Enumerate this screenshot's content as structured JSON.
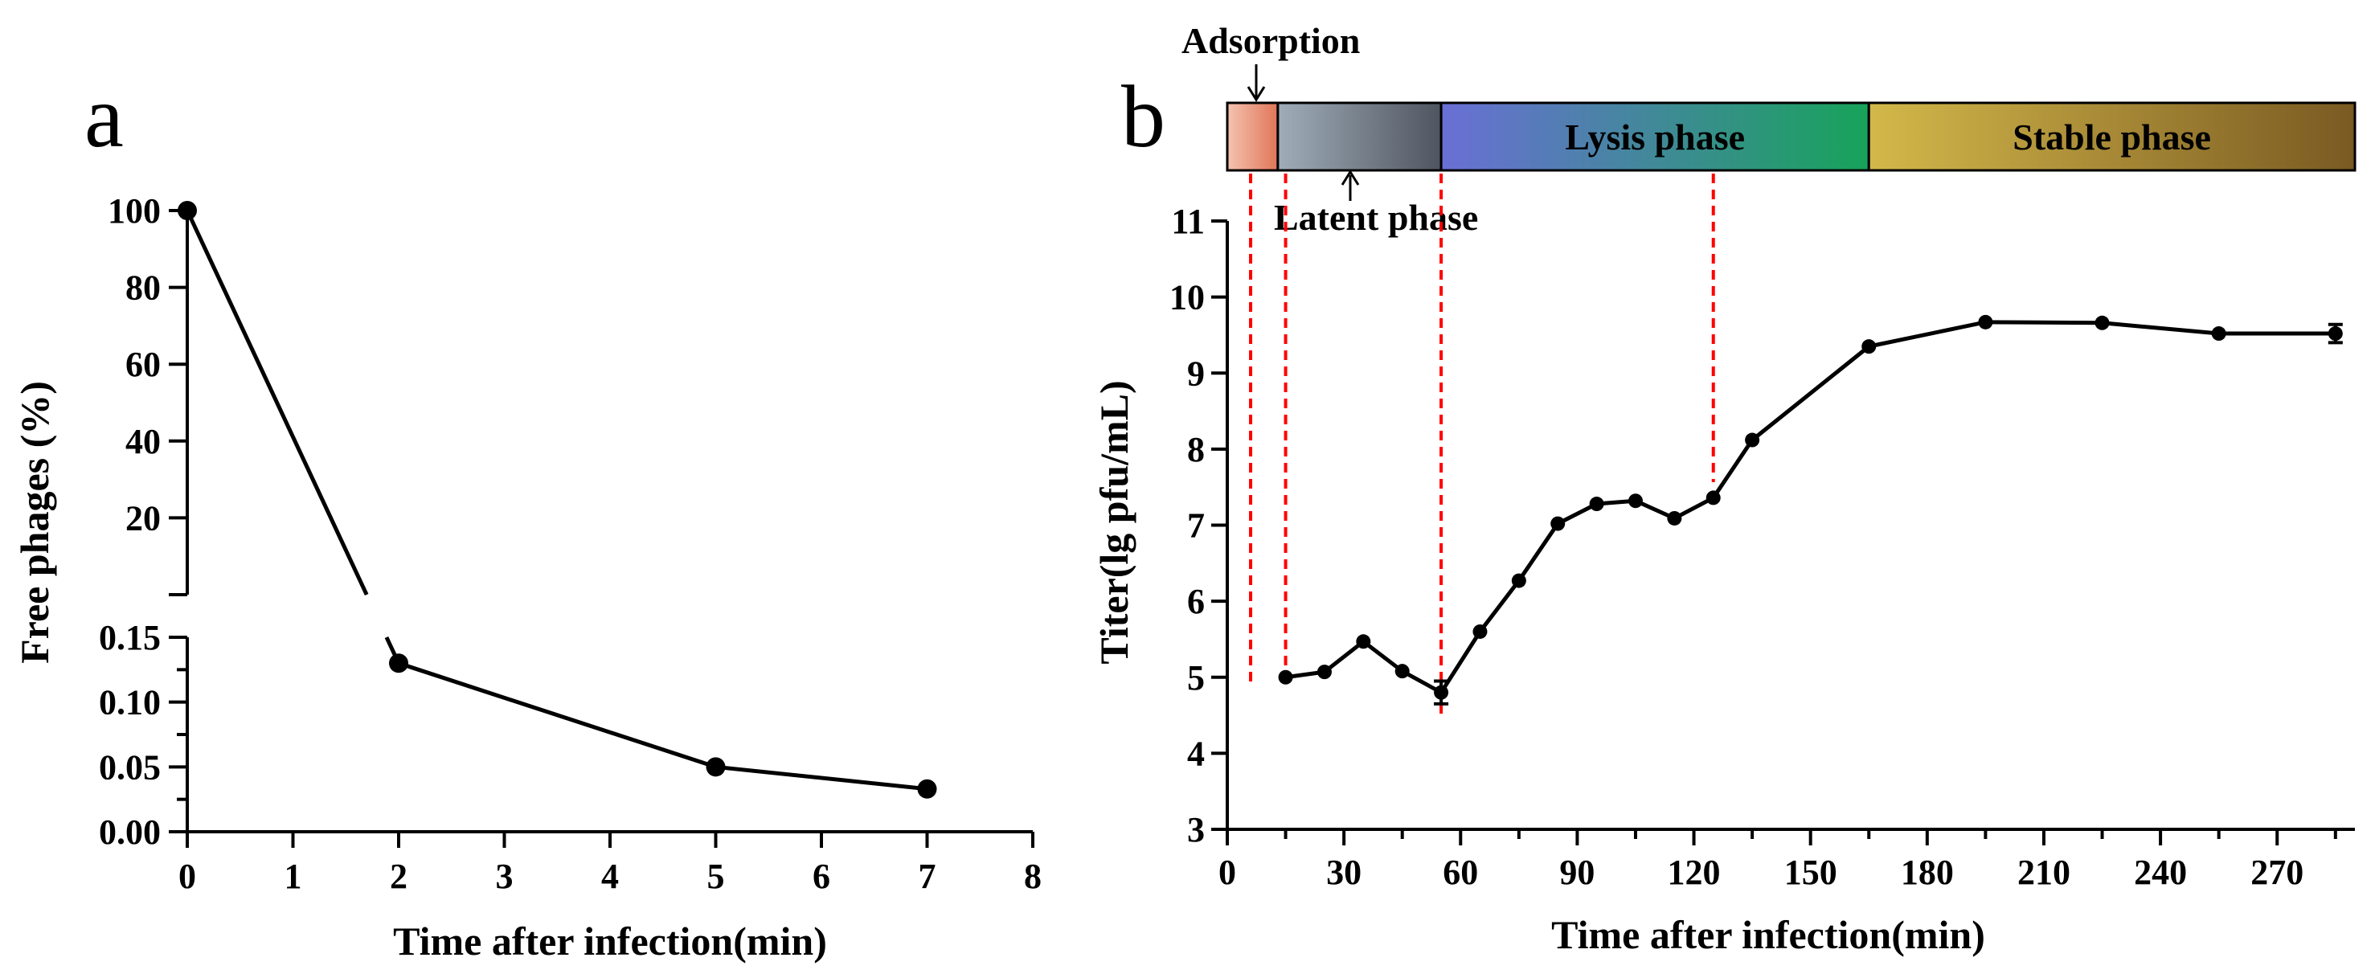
{
  "chart_data": [
    {
      "type": "line",
      "panel_label": "a",
      "xlabel": "Time after infection(min)",
      "ylabel": "Free phages (%)",
      "x_ticks": [
        "0",
        "1",
        "2",
        "3",
        "4",
        "5",
        "6",
        "7",
        "8"
      ],
      "y_ticks_upper": [
        "20",
        "40",
        "60",
        "80",
        "100"
      ],
      "y_ticks_lower": [
        "0.00",
        "0.05",
        "0.10",
        "0.15"
      ],
      "xlim": [
        0,
        8
      ],
      "ylim_upper": [
        0,
        100
      ],
      "ylim_lower": [
        0,
        0.15
      ],
      "axis_break": true,
      "x": [
        0,
        2,
        5,
        7
      ],
      "y": [
        100,
        0.13,
        0.05,
        0.033
      ]
    },
    {
      "type": "line",
      "panel_label": "b",
      "xlabel": "Time after infection(min)",
      "ylabel": "Titer(lg pfu/mL)",
      "x_ticks": [
        "0",
        "30",
        "60",
        "90",
        "120",
        "150",
        "180",
        "210",
        "240",
        "270"
      ],
      "y_ticks": [
        "3",
        "4",
        "5",
        "6",
        "7",
        "8",
        "9",
        "10",
        "11"
      ],
      "xlim": [
        0,
        290
      ],
      "ylim": [
        3,
        11
      ],
      "x": [
        15,
        25,
        35,
        45,
        55,
        65,
        75,
        85,
        95,
        105,
        115,
        125,
        135,
        165,
        195,
        225,
        255,
        285
      ],
      "y": [
        5.0,
        5.07,
        5.47,
        5.08,
        4.8,
        5.6,
        6.27,
        7.02,
        7.28,
        7.32,
        7.09,
        7.36,
        8.12,
        9.35,
        9.67,
        9.66,
        9.52,
        9.52
      ],
      "error": [
        0,
        0,
        0,
        0,
        0.15,
        0,
        0,
        0,
        0,
        0,
        0,
        0,
        0,
        0,
        0,
        0,
        0,
        0.12
      ],
      "phase_boundaries_min": [
        6,
        15,
        55,
        125
      ],
      "phases": [
        {
          "name": "Adsorption",
          "start": 0,
          "end": 13
        },
        {
          "name": "Latent phase",
          "start": 13,
          "end": 55
        },
        {
          "name": "Lysis phase",
          "start": 55,
          "end": 165
        },
        {
          "name": "Stable phase",
          "start": 165,
          "end": 290
        }
      ],
      "colors": {
        "adsorption": [
          "#f4c3b0",
          "#e07658"
        ],
        "latent": [
          "#a0adb8",
          "#4f5560"
        ],
        "lysis": [
          "#6a6fd6",
          "#17a35a"
        ],
        "stable": [
          "#d3b84a",
          "#7a5a22"
        ]
      }
    }
  ]
}
